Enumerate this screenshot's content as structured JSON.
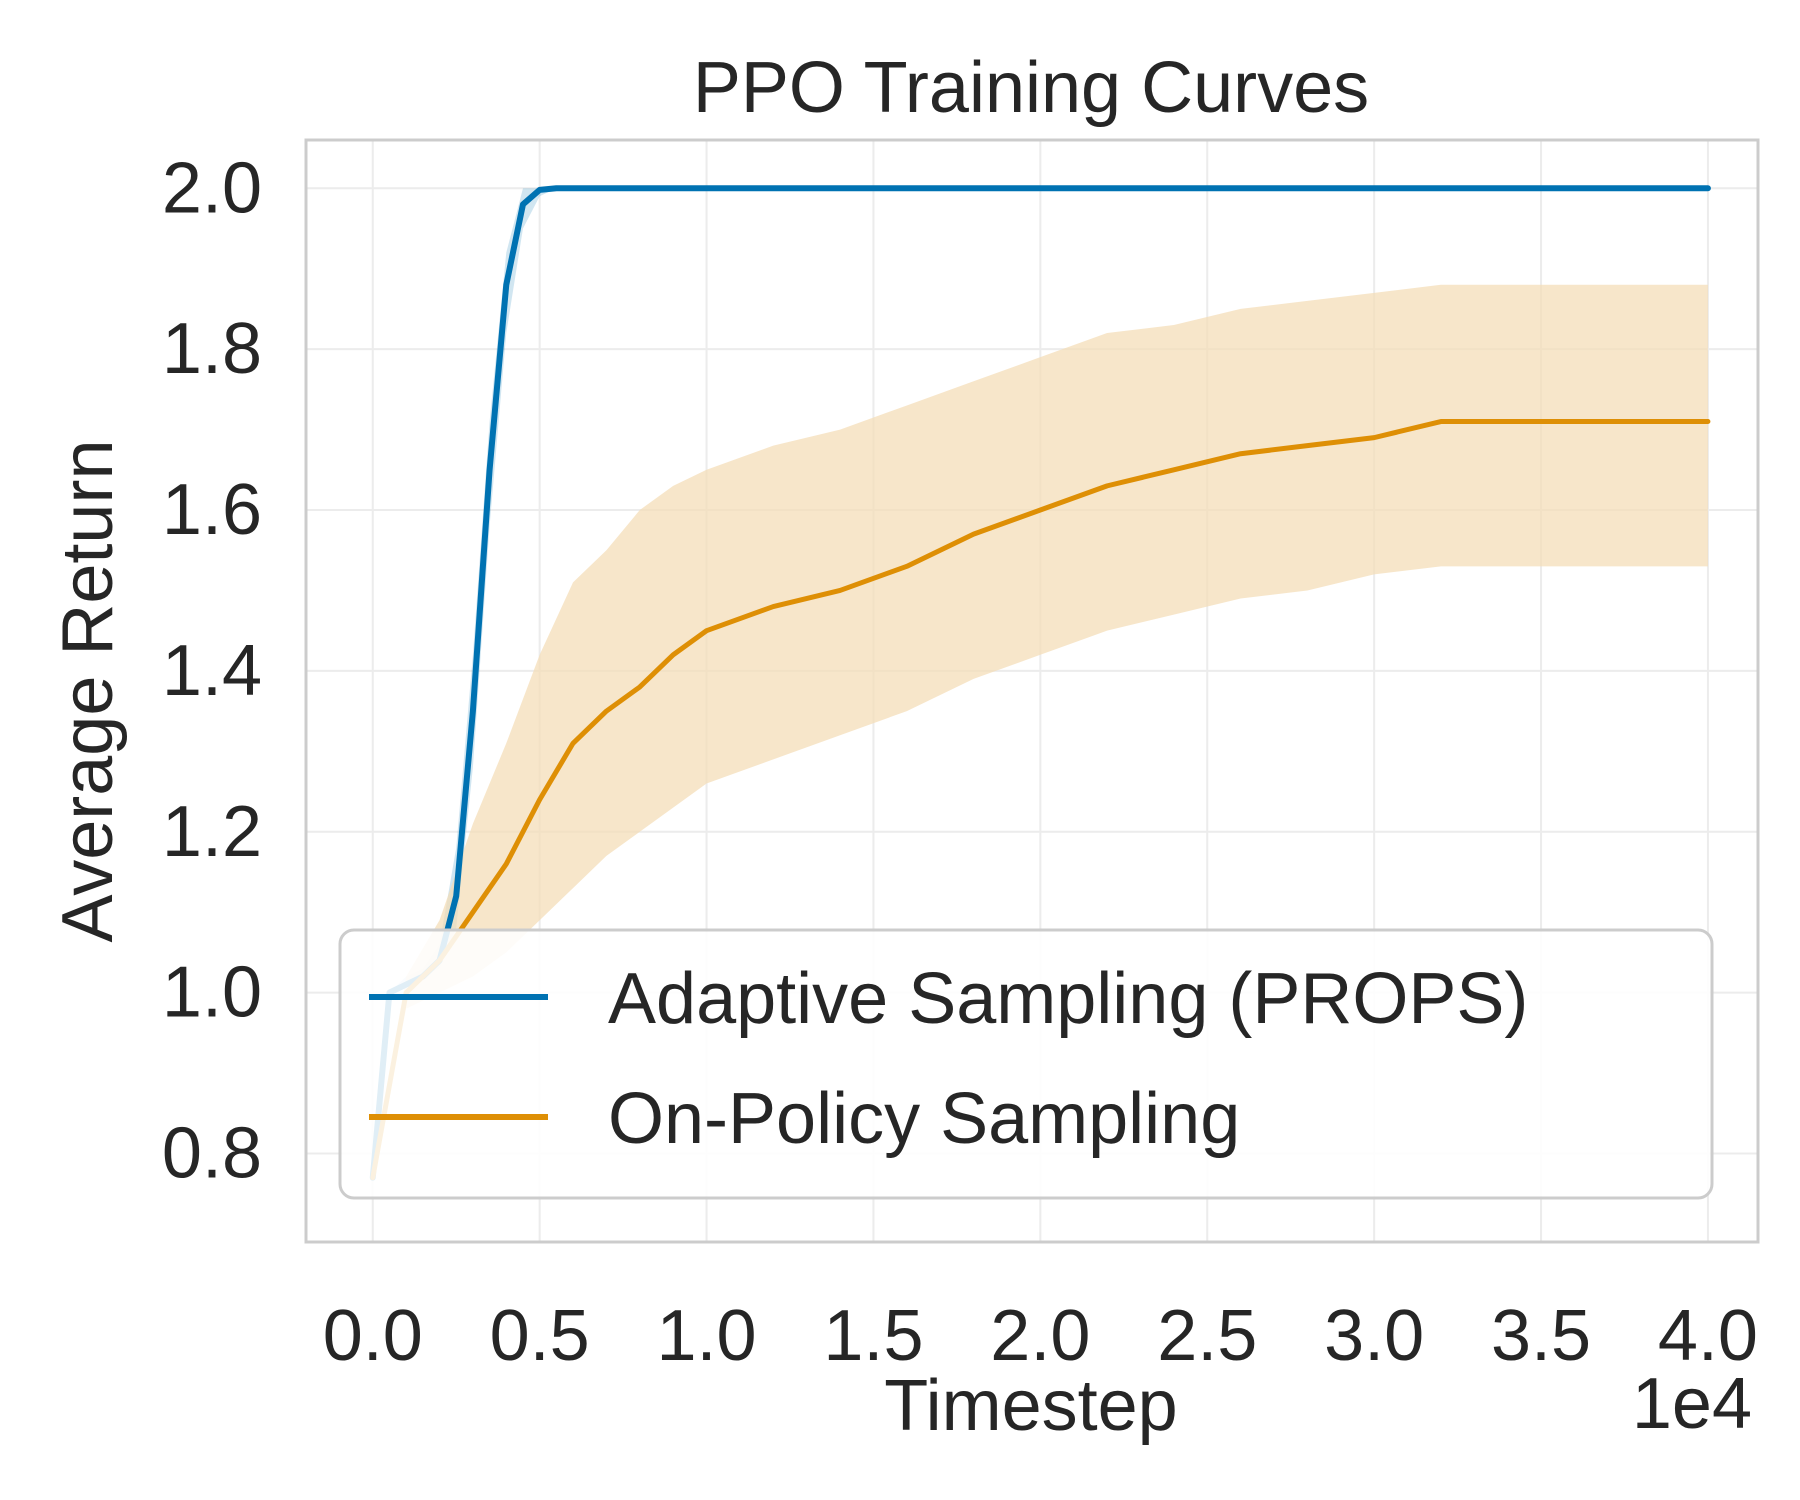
{
  "chart_data": {
    "type": "line",
    "title": "PPO Training Curves",
    "xlabel": "Timestep",
    "ylabel": "Average Return",
    "x_scale_label": "1e4",
    "xlim": [
      -0.2,
      4.15
    ],
    "ylim": [
      0.69,
      2.06
    ],
    "xticks": [
      0.0,
      0.5,
      1.0,
      1.5,
      2.0,
      2.5,
      3.0,
      3.5,
      4.0
    ],
    "xtick_labels": [
      "0.0",
      "0.5",
      "1.0",
      "1.5",
      "2.0",
      "2.5",
      "3.0",
      "3.5",
      "4.0"
    ],
    "yticks": [
      0.8,
      1.0,
      1.2,
      1.4,
      1.6,
      1.8,
      2.0
    ],
    "ytick_labels": [
      "0.8",
      "1.0",
      "1.2",
      "1.4",
      "1.6",
      "1.8",
      "2.0"
    ],
    "grid": true,
    "legend_position": "lower right",
    "series": [
      {
        "name": "Adaptive Sampling (PROPS)",
        "color": "#0072b2",
        "x": [
          0.0,
          0.05,
          0.1,
          0.15,
          0.2,
          0.25,
          0.3,
          0.35,
          0.4,
          0.45,
          0.5,
          0.55,
          0.6,
          1.0,
          2.0,
          3.0,
          4.0
        ],
        "y": [
          0.77,
          1.0,
          1.01,
          1.02,
          1.04,
          1.12,
          1.35,
          1.65,
          1.88,
          1.98,
          1.998,
          2.0,
          2.0,
          2.0,
          2.0,
          2.0,
          2.0
        ],
        "lower": [
          0.77,
          1.0,
          1.01,
          1.02,
          1.03,
          1.08,
          1.28,
          1.58,
          1.82,
          1.95,
          1.99,
          2.0,
          2.0,
          2.0,
          2.0,
          2.0,
          2.0
        ],
        "upper": [
          0.77,
          1.0,
          1.02,
          1.03,
          1.06,
          1.18,
          1.42,
          1.71,
          1.92,
          2.0,
          2.0,
          2.0,
          2.0,
          2.0,
          2.0,
          2.0,
          2.0
        ]
      },
      {
        "name": "On-Policy Sampling",
        "color": "#de8f05",
        "fill_color": "#f4ddb5",
        "x": [
          0.0,
          0.1,
          0.2,
          0.3,
          0.4,
          0.5,
          0.6,
          0.7,
          0.8,
          0.9,
          1.0,
          1.2,
          1.4,
          1.6,
          1.8,
          2.0,
          2.2,
          2.4,
          2.6,
          2.8,
          3.0,
          3.2,
          3.4,
          3.6,
          3.8,
          4.0
        ],
        "y": [
          0.77,
          1.0,
          1.04,
          1.1,
          1.16,
          1.24,
          1.31,
          1.35,
          1.38,
          1.42,
          1.45,
          1.48,
          1.5,
          1.53,
          1.57,
          1.6,
          1.63,
          1.65,
          1.67,
          1.68,
          1.69,
          1.71,
          1.71,
          1.71,
          1.71,
          1.71
        ],
        "lower": [
          0.77,
          0.98,
          1.0,
          1.02,
          1.05,
          1.09,
          1.13,
          1.17,
          1.2,
          1.23,
          1.26,
          1.29,
          1.32,
          1.35,
          1.39,
          1.42,
          1.45,
          1.47,
          1.49,
          1.5,
          1.52,
          1.53,
          1.53,
          1.53,
          1.53,
          1.53
        ],
        "upper": [
          0.77,
          1.02,
          1.09,
          1.21,
          1.31,
          1.42,
          1.51,
          1.55,
          1.6,
          1.63,
          1.65,
          1.68,
          1.7,
          1.73,
          1.76,
          1.79,
          1.82,
          1.83,
          1.85,
          1.86,
          1.87,
          1.88,
          1.88,
          1.88,
          1.88,
          1.88
        ]
      }
    ]
  }
}
